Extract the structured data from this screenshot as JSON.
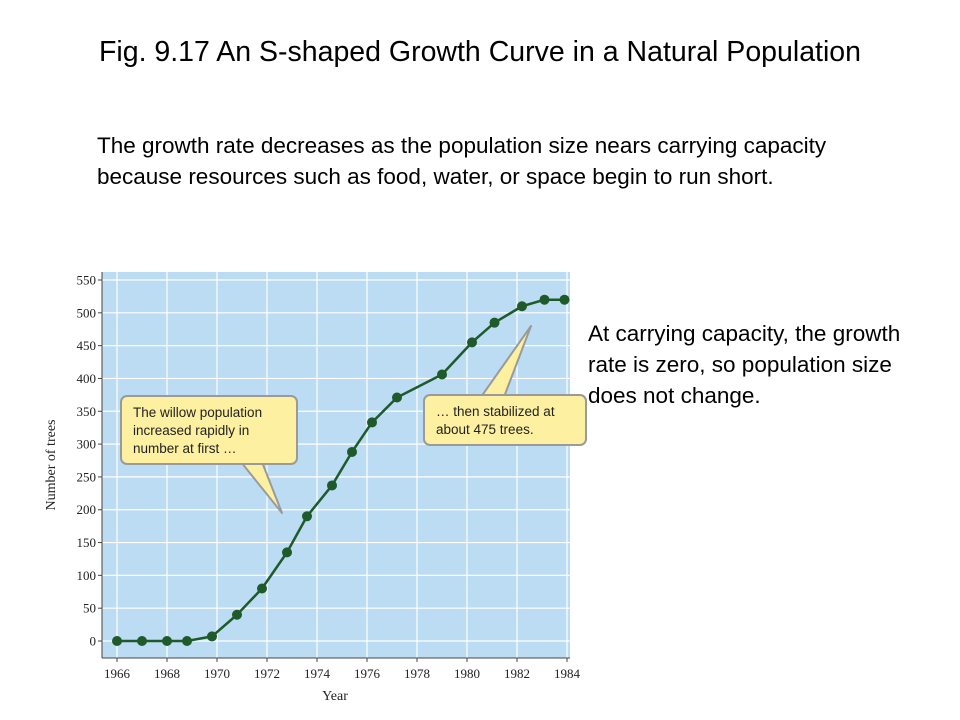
{
  "slide": {
    "title": "Fig. 9.17  An S-shaped Growth Curve in a Natural Population",
    "intro_text": "The growth rate decreases as the population size nears carrying capacity because resources such as food, water, or space begin to run short.",
    "side_text": "At carrying capacity, the growth rate is zero, so population size does not change."
  },
  "chart_data": {
    "type": "line",
    "xlabel": "Year",
    "ylabel": "Number of trees",
    "xlim": [
      1966,
      1984
    ],
    "ylim": [
      0,
      550
    ],
    "x_ticks": [
      1966,
      1968,
      1970,
      1972,
      1974,
      1976,
      1978,
      1980,
      1982,
      1984
    ],
    "y_ticks": [
      0,
      50,
      100,
      150,
      200,
      250,
      300,
      350,
      400,
      450,
      500,
      550
    ],
    "grid": true,
    "background_color": "#bcdcf4",
    "line_color": "#1e5a2a",
    "series": [
      {
        "x": [
          1966,
          1967,
          1968,
          1968.8,
          1969.8,
          1970.8,
          1971.8,
          1972.8,
          1973.6,
          1974.6,
          1975.4,
          1976.2,
          1977.2,
          1979,
          1980.2,
          1981.1,
          1982.2,
          1983.1,
          1983.9
        ],
        "values": [
          0,
          0,
          0,
          0,
          7,
          40,
          80,
          135,
          190,
          237,
          288,
          333,
          371,
          406,
          455,
          485,
          510,
          520,
          520
        ]
      }
    ],
    "annotations": [
      {
        "lines": [
          "The willow population",
          "increased rapidly in",
          "number at first …"
        ]
      },
      {
        "lines": [
          "… then stabilized at",
          "about 475 trees."
        ]
      }
    ]
  }
}
